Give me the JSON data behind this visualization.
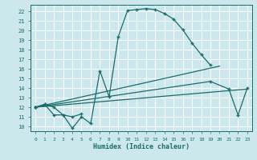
{
  "xlabel": "Humidex (Indice chaleur)",
  "bg_color": "#cde8ec",
  "grid_color": "#ffffff",
  "line_color": "#1a6b6a",
  "xlim": [
    -0.5,
    23.5
  ],
  "ylim": [
    9.5,
    22.7
  ],
  "xticks": [
    0,
    1,
    2,
    3,
    4,
    5,
    6,
    7,
    8,
    9,
    10,
    11,
    12,
    13,
    14,
    15,
    16,
    17,
    18,
    19,
    20,
    21,
    22,
    23
  ],
  "yticks": [
    10,
    11,
    12,
    13,
    14,
    15,
    16,
    17,
    18,
    19,
    20,
    21,
    22
  ],
  "line1_x": [
    0,
    1,
    2,
    3,
    4,
    5,
    6,
    7,
    8,
    9,
    10,
    11,
    12,
    13,
    14,
    15,
    16,
    17,
    18,
    19
  ],
  "line1_y": [
    12.0,
    12.3,
    12.0,
    11.2,
    9.8,
    11.0,
    10.3,
    15.8,
    13.1,
    19.4,
    22.1,
    22.2,
    22.3,
    22.2,
    21.8,
    21.2,
    20.1,
    18.7,
    17.5,
    16.4
  ],
  "line2_x": [
    0,
    1,
    2,
    3,
    4,
    5
  ],
  "line2_y": [
    12.0,
    12.3,
    11.2,
    11.2,
    11.0,
    11.3
  ],
  "line3_x": [
    0,
    23
  ],
  "line3_y": [
    12.0,
    13.9
  ],
  "line4_x": [
    0,
    19,
    21,
    22,
    23
  ],
  "line4_y": [
    12.0,
    14.7,
    13.9,
    11.2,
    14.0
  ],
  "line5_x": [
    0,
    20
  ],
  "line5_y": [
    12.0,
    16.3
  ]
}
